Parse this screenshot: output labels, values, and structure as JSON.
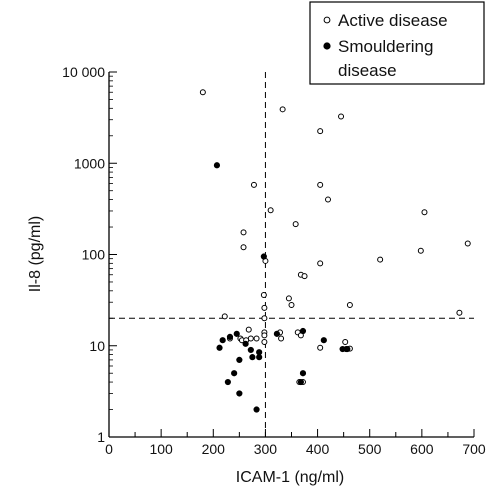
{
  "chart_data": {
    "type": "scatter",
    "xlabel": "ICAM-1 (ng/ml)",
    "ylabel": "Il-8 (pg/ml)",
    "xlim": [
      0,
      700
    ],
    "ylim": [
      1,
      10000
    ],
    "y_scale": "log",
    "x_ticks": [
      "0",
      "100",
      "200",
      "300",
      "400",
      "500",
      "600",
      "700"
    ],
    "y_ticks": [
      "1",
      "10",
      "100",
      "1000",
      "10 000"
    ],
    "grid": false,
    "legend_position": "top-right",
    "reference_lines": {
      "x": 300,
      "y": 20
    },
    "series": [
      {
        "name": "Active disease",
        "marker": "open-circle",
        "color": "#000000",
        "points": [
          [
            180,
            6000
          ],
          [
            333,
            3900
          ],
          [
            445,
            3250
          ],
          [
            405,
            2250
          ],
          [
            278,
            580
          ],
          [
            405,
            580
          ],
          [
            420,
            400
          ],
          [
            310,
            305
          ],
          [
            605,
            290
          ],
          [
            258,
            175
          ],
          [
            358,
            215
          ],
          [
            258,
            120
          ],
          [
            598,
            110
          ],
          [
            688,
            132
          ],
          [
            520,
            88
          ],
          [
            405,
            80
          ],
          [
            368,
            60
          ],
          [
            375,
            58
          ],
          [
            300,
            85
          ],
          [
            297,
            36
          ],
          [
            345,
            33
          ],
          [
            350,
            28
          ],
          [
            462,
            28
          ],
          [
            298,
            26
          ],
          [
            672,
            23
          ],
          [
            222,
            21
          ],
          [
            298,
            20
          ],
          [
            298,
            14
          ],
          [
            298,
            13
          ],
          [
            328,
            14
          ],
          [
            362,
            14
          ],
          [
            268,
            15
          ],
          [
            252,
            12
          ],
          [
            232,
            12
          ],
          [
            272,
            12
          ],
          [
            283,
            12
          ],
          [
            298,
            11
          ],
          [
            330,
            12
          ],
          [
            453,
            11
          ],
          [
            405,
            9.5
          ],
          [
            462,
            9.3
          ],
          [
            368,
            13
          ],
          [
            365,
            4
          ],
          [
            372,
            4
          ],
          [
            255,
            11.5
          ],
          [
            263,
            11.5
          ]
        ]
      },
      {
        "name": "Smouldering disease",
        "marker": "filled-circle",
        "color": "#000000",
        "points": [
          [
            207,
            950
          ],
          [
            297,
            95
          ],
          [
            212,
            9.5
          ],
          [
            218,
            11.5
          ],
          [
            232,
            12.5
          ],
          [
            245,
            13.5
          ],
          [
            262,
            10.5
          ],
          [
            272,
            9
          ],
          [
            288,
            8.5
          ],
          [
            322,
            13.5
          ],
          [
            372,
            14.5
          ],
          [
            412,
            11.5
          ],
          [
            448,
            9.2
          ],
          [
            455,
            9.2
          ],
          [
            457,
            9.2
          ],
          [
            288,
            7.5
          ],
          [
            275,
            7.5
          ],
          [
            250,
            7
          ],
          [
            240,
            5
          ],
          [
            228,
            4
          ],
          [
            250,
            3
          ],
          [
            372,
            5
          ],
          [
            368,
            4
          ],
          [
            283,
            2
          ]
        ]
      }
    ]
  }
}
